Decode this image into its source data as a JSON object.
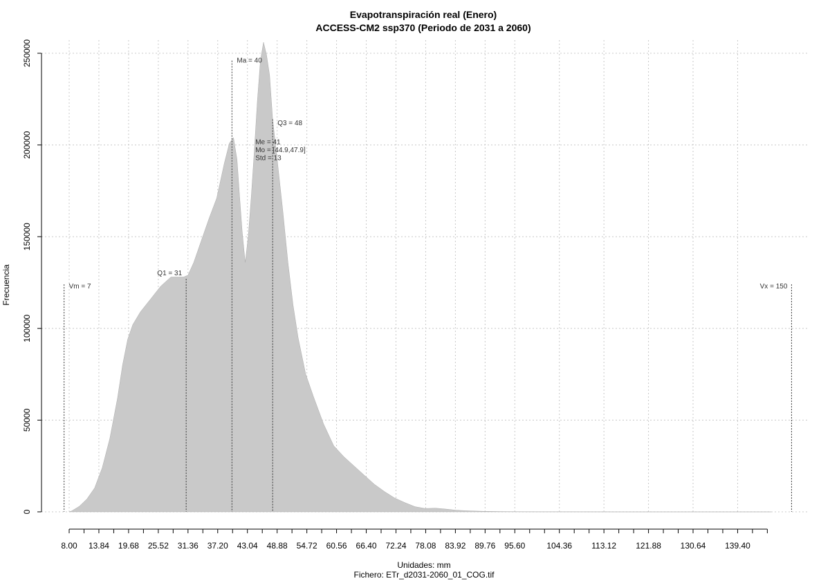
{
  "chart_data": {
    "type": "area",
    "title": "Evapotranspiración real (Enero)",
    "subtitle": "ACCESS-CM2 ssp370 (Periodo de 2031 a 2060)",
    "xlabel": "Unidades: mm",
    "footer": "Fichero: ETr_d2031-2060_01_COG.tif",
    "ylabel": "Frecuencia",
    "xlim": [
      6,
      151
    ],
    "ylim": [
      0,
      250000
    ],
    "x_tick_labels": [
      "8.00",
      "13.84",
      "19.68",
      "25.52",
      "31.36",
      "37.20",
      "43.04",
      "48.88",
      "54.72",
      "60.56",
      "66.40",
      "72.24",
      "78.08",
      "83.92",
      "89.76",
      "95.60",
      "104.36",
      "113.12",
      "121.88",
      "130.64",
      "139.40"
    ],
    "x_tick_values": [
      8.0,
      13.84,
      19.68,
      25.52,
      31.36,
      37.2,
      43.04,
      48.88,
      54.72,
      60.56,
      66.4,
      72.24,
      78.08,
      83.92,
      89.76,
      95.6,
      104.36,
      113.12,
      121.88,
      130.64,
      139.4
    ],
    "x_minor_step": 2.92,
    "x_minor_max": 145.24,
    "y_ticks": [
      0,
      50000,
      100000,
      150000,
      200000,
      250000
    ],
    "y_tick_labels": [
      "0",
      "50000",
      "100000",
      "150000",
      "200000",
      "250000"
    ],
    "grid": true,
    "series": [
      {
        "x": [
          8.0,
          8.5,
          10,
          11.5,
          13,
          14.5,
          16,
          17.5,
          18.5,
          19.5,
          20.5,
          22,
          24,
          26,
          28,
          29.5,
          30.5,
          31.36,
          32.5,
          34,
          35.5,
          37,
          38.5,
          39.5,
          40.3,
          41,
          41.5,
          42,
          42.6,
          43.2,
          43.8,
          44.4,
          45,
          45.6,
          46.2,
          46.8,
          47.4,
          48,
          48.9,
          50,
          51,
          52,
          53,
          54.5,
          56,
          58,
          60,
          62,
          64,
          66,
          68,
          70,
          72,
          74,
          76,
          78,
          80,
          82,
          84,
          86,
          88,
          90,
          93,
          97,
          100,
          105,
          115,
          130,
          140,
          146
        ],
        "y": [
          0,
          500,
          3000,
          7000,
          13000,
          24000,
          40000,
          62000,
          80000,
          94000,
          102000,
          109000,
          116000,
          123000,
          128000,
          128000,
          128000,
          129000,
          136000,
          148000,
          160000,
          171000,
          190000,
          201000,
          204000,
          192000,
          172000,
          153000,
          136000,
          150000,
          172000,
          197000,
          224000,
          246000,
          256000,
          249000,
          238000,
          214000,
          192000,
          164000,
          136000,
          113000,
          95000,
          75000,
          63000,
          48000,
          36000,
          30000,
          25000,
          20000,
          15000,
          11000,
          7500,
          5000,
          2800,
          1800,
          2000,
          1500,
          900,
          600,
          400,
          250,
          150,
          80,
          50,
          30,
          15,
          8,
          4,
          0
        ]
      }
    ],
    "markers": [
      {
        "label": "Vm = 7",
        "x": 7,
        "line_top": 124000,
        "label_y": 123000,
        "label_side": "right"
      },
      {
        "label": "Q1 = 31",
        "x": 31,
        "line_top": 127000,
        "label_y": 130000,
        "label_side": "left"
      },
      {
        "label": "Ma = 40",
        "x": 40,
        "line_top": 246000,
        "label_y": 246000,
        "label_side": "right"
      },
      {
        "label": "Q3 = 48",
        "x": 48,
        "line_top": 214000,
        "label_y": 212000,
        "label_side": "right"
      },
      {
        "label": "Vx = 150",
        "x": 150,
        "line_top": 124000,
        "label_y": 123000,
        "label_side": "left"
      }
    ],
    "stats_block": {
      "x": 44.6,
      "y": 201500,
      "lines": [
        "Me = 41",
        "Mo = [44.9,47.9]",
        "Std = 13"
      ]
    }
  }
}
